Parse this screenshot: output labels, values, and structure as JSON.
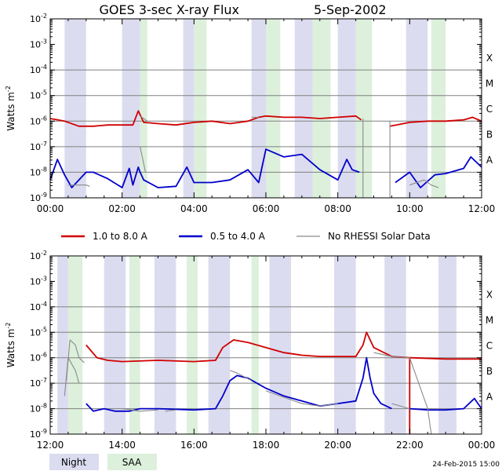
{
  "title": "GOES 3-sec X-ray Flux",
  "date": "5-Sep-2002",
  "timestamp": "24-Feb-2015 15:00",
  "colors": {
    "long_channel": "#d00000",
    "short_channel": "#0000cc",
    "no_rhessi": "#8a8a8a",
    "night": "#dcdcf0",
    "saa": "#dcf0dc"
  },
  "legend": {
    "long": "1.0 to 8.0 A",
    "short": "0.5 to 4.0 A",
    "gray": "No RHESSI Solar Data"
  },
  "shade_legend": {
    "night": "Night",
    "saa": "SAA"
  },
  "chart_data": [
    {
      "type": "line",
      "title": "GOES 3-sec X-ray Flux  5-Sep-2002",
      "ylabel": "Watts m^-2",
      "yscale": "log",
      "ylim": [
        1e-09,
        0.01
      ],
      "xlim": [
        0,
        12
      ],
      "x_ticks": [
        "00:00",
        "02:00",
        "04:00",
        "06:00",
        "08:00",
        "10:00",
        "12:00"
      ],
      "y_ticks": [
        -9,
        -8,
        -7,
        -6,
        -5,
        -4,
        -3,
        -2
      ],
      "class_labels": [
        "A",
        "B",
        "C",
        "M",
        "X"
      ],
      "night": [
        [
          0.4,
          1.0
        ],
        [
          2.0,
          2.5
        ],
        [
          3.7,
          4.0
        ],
        [
          5.6,
          6.0
        ],
        [
          6.8,
          7.3
        ],
        [
          8.0,
          8.5
        ],
        [
          9.9,
          10.5
        ]
      ],
      "saa": [
        [
          2.5,
          2.7
        ],
        [
          4.0,
          4.35
        ],
        [
          6.0,
          6.4
        ],
        [
          7.3,
          7.8
        ],
        [
          8.5,
          8.95
        ],
        [
          10.6,
          11.0
        ]
      ],
      "series": [
        {
          "name": "1.0 to 8.0 A",
          "key": "long",
          "points": [
            [
              0.0,
              -5.9
            ],
            [
              0.4,
              -6.0
            ],
            [
              0.8,
              -6.2
            ],
            [
              1.2,
              -6.2
            ],
            [
              1.6,
              -6.15
            ],
            [
              2.0,
              -6.15
            ],
            [
              2.3,
              -6.15
            ],
            [
              2.45,
              -5.6
            ],
            [
              2.6,
              -6.05
            ],
            [
              3.0,
              -6.1
            ],
            [
              3.5,
              -6.15
            ],
            [
              4.0,
              -6.05
            ],
            [
              4.5,
              -6.0
            ],
            [
              5.0,
              -6.1
            ],
            [
              5.5,
              -6.0
            ],
            [
              5.8,
              -5.85
            ],
            [
              6.0,
              -5.8
            ],
            [
              6.5,
              -5.85
            ],
            [
              7.0,
              -5.85
            ],
            [
              7.5,
              -5.9
            ],
            [
              8.0,
              -5.85
            ],
            [
              8.5,
              -5.8
            ],
            [
              8.65,
              -5.95
            ]
          ]
        },
        {
          "name": "1.0 to 8.0 A",
          "key": "long",
          "points": [
            [
              9.45,
              -6.2
            ],
            [
              10.0,
              -6.05
            ],
            [
              10.5,
              -6.0
            ],
            [
              11.0,
              -6.0
            ],
            [
              11.5,
              -5.95
            ],
            [
              11.75,
              -5.85
            ],
            [
              12.0,
              -6.0
            ]
          ]
        },
        {
          "name": "0.5 to 4.0 A",
          "key": "short",
          "points": [
            [
              0.0,
              -8.3
            ],
            [
              0.2,
              -7.5
            ],
            [
              0.4,
              -8.1
            ],
            [
              0.6,
              -8.6
            ],
            [
              1.0,
              -8.0
            ],
            [
              1.2,
              -8.0
            ],
            [
              1.6,
              -8.25
            ],
            [
              2.0,
              -8.6
            ],
            [
              2.2,
              -7.85
            ],
            [
              2.3,
              -8.5
            ],
            [
              2.45,
              -7.8
            ],
            [
              2.5,
              -8.0
            ],
            [
              2.6,
              -8.3
            ],
            [
              3.0,
              -8.6
            ],
            [
              3.5,
              -8.55
            ],
            [
              3.8,
              -7.8
            ],
            [
              4.0,
              -8.4
            ],
            [
              4.5,
              -8.4
            ],
            [
              5.0,
              -8.3
            ],
            [
              5.5,
              -7.9
            ],
            [
              5.8,
              -8.4
            ],
            [
              6.0,
              -7.1
            ],
            [
              6.5,
              -7.4
            ],
            [
              7.0,
              -7.3
            ],
            [
              7.5,
              -7.9
            ],
            [
              8.0,
              -8.3
            ],
            [
              8.25,
              -7.5
            ],
            [
              8.4,
              -7.9
            ],
            [
              8.6,
              -8.0
            ]
          ]
        },
        {
          "name": "0.5 to 4.0 A",
          "key": "short",
          "points": [
            [
              9.6,
              -8.4
            ],
            [
              10.0,
              -8.0
            ],
            [
              10.3,
              -8.6
            ],
            [
              10.7,
              -8.1
            ],
            [
              11.0,
              -8.05
            ],
            [
              11.5,
              -7.85
            ],
            [
              11.7,
              -7.4
            ],
            [
              12.0,
              -7.8
            ]
          ]
        },
        {
          "name": "No RHESSI Solar Data",
          "key": "gray",
          "points": [
            [
              0.5,
              -8.5
            ],
            [
              1.0,
              -8.5
            ],
            [
              1.1,
              -8.55
            ]
          ]
        },
        {
          "name": "No RHESSI Solar Data",
          "key": "gray",
          "points": [
            [
              2.5,
              -5.8
            ],
            [
              2.7,
              -6.0
            ]
          ]
        },
        {
          "name": "No RHESSI Solar Data",
          "key": "gray",
          "points": [
            [
              2.5,
              -7.0
            ],
            [
              2.65,
              -8.0
            ]
          ]
        },
        {
          "name": "No RHESSI Solar Data",
          "key": "gray",
          "points": [
            [
              5.6,
              -5.85
            ],
            [
              5.8,
              -5.85
            ]
          ]
        },
        {
          "name": "No RHESSI Solar Data",
          "key": "gray",
          "points": [
            [
              8.7,
              -5.9
            ],
            [
              8.7,
              -9.0
            ]
          ]
        },
        {
          "name": "No RHESSI Solar Data",
          "key": "gray",
          "points": [
            [
              9.45,
              -6.0
            ],
            [
              9.45,
              -9.0
            ]
          ]
        },
        {
          "name": "No RHESSI Solar Data",
          "key": "gray",
          "points": [
            [
              10.0,
              -8.5
            ],
            [
              10.4,
              -8.3
            ],
            [
              10.6,
              -8.5
            ],
            [
              10.8,
              -8.6
            ]
          ]
        }
      ]
    },
    {
      "type": "line",
      "title": "",
      "ylabel": "Watts m^-2",
      "yscale": "log",
      "ylim": [
        1e-09,
        0.01
      ],
      "xlim": [
        12,
        24
      ],
      "x_ticks": [
        "12:00",
        "14:00",
        "16:00",
        "18:00",
        "20:00",
        "22:00",
        "00:00"
      ],
      "y_ticks": [
        -9,
        -8,
        -7,
        -6,
        -5,
        -4,
        -3,
        -2
      ],
      "class_labels": [
        "A",
        "B",
        "C",
        "M",
        "X"
      ],
      "night": [
        [
          12.2,
          12.5
        ],
        [
          13.5,
          14.1
        ],
        [
          14.9,
          15.5
        ],
        [
          16.4,
          17.0
        ],
        [
          18.1,
          18.7
        ],
        [
          19.9,
          20.5
        ],
        [
          21.3,
          21.9
        ],
        [
          22.8,
          23.3
        ]
      ],
      "saa": [
        [
          12.5,
          12.9
        ],
        [
          14.2,
          14.5
        ],
        [
          15.8,
          16.1
        ],
        [
          17.6,
          17.8
        ]
      ],
      "series": [
        {
          "name": "1.0 to 8.0 A",
          "key": "long",
          "points": [
            [
              13.0,
              -5.5
            ],
            [
              13.3,
              -6.0
            ],
            [
              13.6,
              -6.1
            ],
            [
              14.0,
              -6.15
            ],
            [
              15.0,
              -6.1
            ],
            [
              16.0,
              -6.15
            ],
            [
              16.6,
              -6.1
            ],
            [
              16.8,
              -5.6
            ],
            [
              17.1,
              -5.3
            ],
            [
              17.5,
              -5.4
            ],
            [
              18.0,
              -5.6
            ],
            [
              18.5,
              -5.8
            ],
            [
              19.0,
              -5.9
            ],
            [
              19.5,
              -5.95
            ],
            [
              20.0,
              -5.95
            ],
            [
              20.5,
              -5.95
            ],
            [
              20.7,
              -5.5
            ],
            [
              20.8,
              -5.0
            ],
            [
              20.9,
              -5.3
            ],
            [
              21.0,
              -5.6
            ],
            [
              21.5,
              -5.95
            ],
            [
              22.0,
              -6.0
            ]
          ]
        },
        {
          "name": "1.0 to 8.0 A",
          "key": "long",
          "points": [
            [
              22.0,
              -6.0
            ],
            [
              22.0,
              -9.0
            ]
          ]
        },
        {
          "name": "1.0 to 8.0 A",
          "key": "long",
          "points": [
            [
              22.0,
              -6.0
            ],
            [
              23.0,
              -6.05
            ],
            [
              23.5,
              -6.05
            ],
            [
              24.0,
              -6.05
            ]
          ]
        },
        {
          "name": "0.5 to 4.0 A",
          "key": "short",
          "points": [
            [
              13.0,
              -7.8
            ],
            [
              13.2,
              -8.1
            ],
            [
              13.5,
              -8.0
            ],
            [
              13.8,
              -8.1
            ],
            [
              14.2,
              -8.1
            ],
            [
              14.5,
              -8.0
            ],
            [
              15.0,
              -8.0
            ],
            [
              16.0,
              -8.05
            ],
            [
              16.6,
              -8.0
            ],
            [
              16.8,
              -7.5
            ],
            [
              17.0,
              -6.9
            ],
            [
              17.2,
              -6.7
            ],
            [
              17.5,
              -6.8
            ],
            [
              18.0,
              -7.2
            ],
            [
              18.5,
              -7.5
            ],
            [
              19.0,
              -7.7
            ],
            [
              19.5,
              -7.9
            ],
            [
              20.0,
              -7.8
            ],
            [
              20.5,
              -7.7
            ],
            [
              20.7,
              -6.8
            ],
            [
              20.8,
              -6.0
            ],
            [
              20.9,
              -6.8
            ],
            [
              21.0,
              -7.4
            ],
            [
              21.2,
              -7.8
            ],
            [
              21.5,
              -8.0
            ]
          ]
        },
        {
          "name": "0.5 to 4.0 A",
          "key": "short",
          "points": [
            [
              22.0,
              -8.0
            ],
            [
              22.5,
              -8.05
            ],
            [
              23.0,
              -8.05
            ],
            [
              23.5,
              -8.0
            ],
            [
              23.8,
              -7.6
            ],
            [
              24.0,
              -8.0
            ]
          ]
        },
        {
          "name": "No RHESSI Solar Data",
          "key": "gray",
          "points": [
            [
              12.45,
              -6.9
            ],
            [
              12.55,
              -5.3
            ],
            [
              12.7,
              -5.5
            ],
            [
              12.8,
              -6.0
            ],
            [
              12.95,
              -6.2
            ]
          ]
        },
        {
          "name": "No RHESSI Solar Data",
          "key": "gray",
          "points": [
            [
              12.4,
              -7.5
            ],
            [
              12.5,
              -6.0
            ],
            [
              12.7,
              -6.5
            ],
            [
              12.8,
              -7.0
            ]
          ]
        },
        {
          "name": "No RHESSI Solar Data",
          "key": "gray",
          "points": [
            [
              14.0,
              -8.0
            ],
            [
              14.5,
              -8.1
            ],
            [
              15.0,
              -8.05
            ]
          ]
        },
        {
          "name": "No RHESSI Solar Data",
          "key": "gray",
          "points": [
            [
              15.2,
              -8.1
            ],
            [
              15.5,
              -8.05
            ]
          ]
        },
        {
          "name": "No RHESSI Solar Data",
          "key": "gray",
          "points": [
            [
              17.0,
              -6.5
            ],
            [
              17.2,
              -6.6
            ],
            [
              17.6,
              -6.9
            ]
          ]
        },
        {
          "name": "No RHESSI Solar Data",
          "key": "gray",
          "points": [
            [
              18.0,
              -7.3
            ],
            [
              19.0,
              -7.8
            ],
            [
              19.5,
              -7.9
            ],
            [
              20.0,
              -7.8
            ]
          ]
        },
        {
          "name": "No RHESSI Solar Data",
          "key": "gray",
          "points": [
            [
              21.0,
              -5.8
            ],
            [
              21.5,
              -5.95
            ],
            [
              22.0,
              -6.0
            ]
          ]
        },
        {
          "name": "No RHESSI Solar Data",
          "key": "gray",
          "points": [
            [
              21.5,
              -7.8
            ],
            [
              22.0,
              -8.0
            ]
          ]
        },
        {
          "name": "No RHESSI Solar Data",
          "key": "gray",
          "points": [
            [
              22.0,
              -6.0
            ],
            [
              22.5,
              -8.0
            ],
            [
              22.6,
              -9.0
            ]
          ]
        }
      ]
    }
  ]
}
